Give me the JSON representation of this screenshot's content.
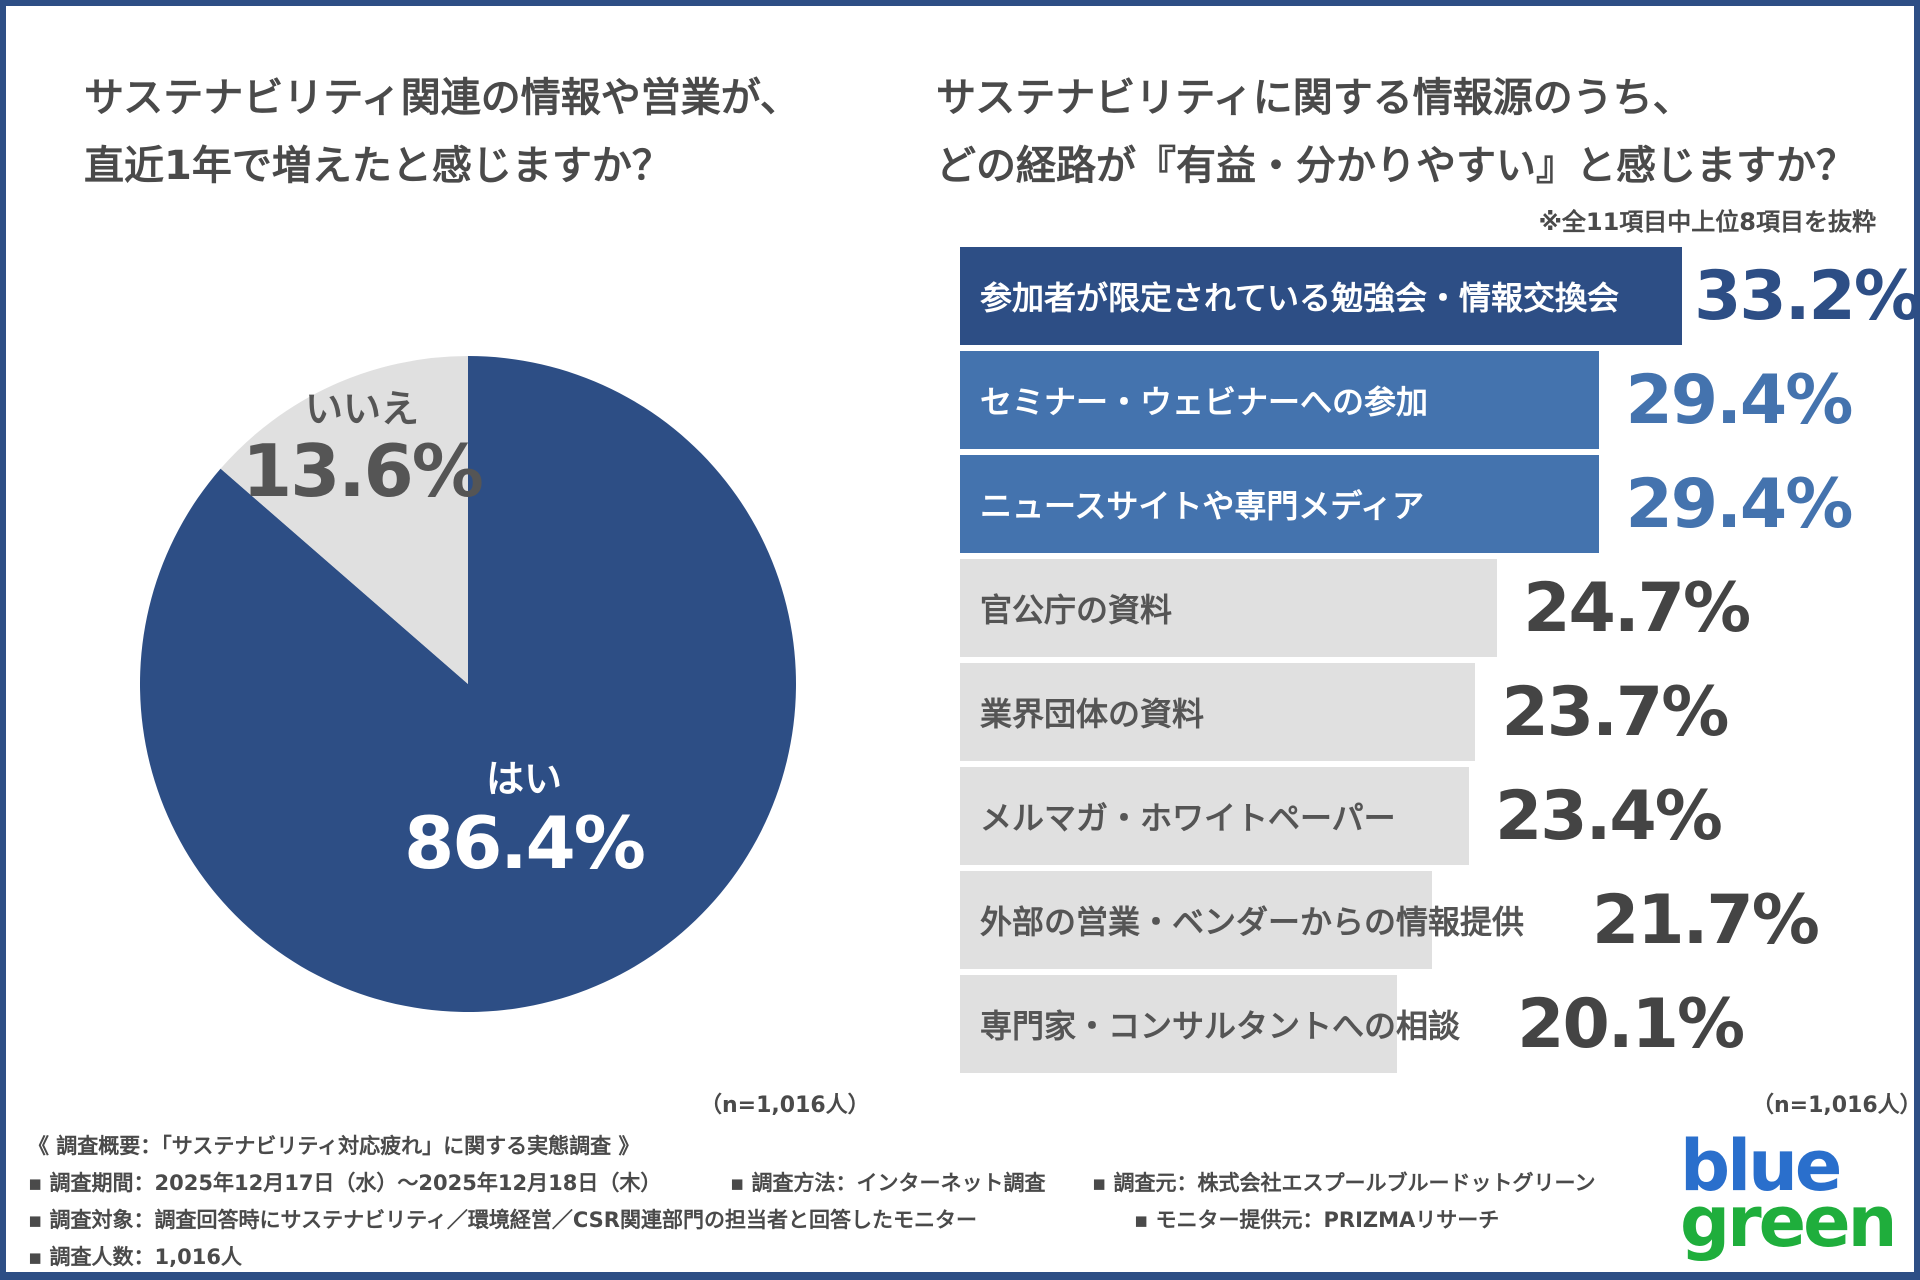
{
  "colors": {
    "navy": "#2d4e85",
    "mid_blue": "#4473ae",
    "grey_bar": "#e0e0e0",
    "text": "#444444",
    "logo_blue": "#2a6fcc",
    "logo_green": "#1fae3c"
  },
  "chart_data": [
    {
      "type": "pie",
      "title": "サステナビリティ関連の情報や営業が、\n直近1年で増えたと感じますか？",
      "slices": [
        {
          "label": "はい",
          "value": 86.4,
          "display": "86.4%",
          "color": "#2d4e85"
        },
        {
          "label": "いいえ",
          "value": 13.6,
          "display": "13.6%",
          "color": "#e0e0e0"
        }
      ],
      "sample": "（n=1,016人）"
    },
    {
      "type": "bar",
      "orientation": "horizontal",
      "title": "サステナビリティに関する情報源のうち、\nどの経路が『有益・分かりやすい』と感じますか？",
      "note": "※全11項目中上位8項目を抜粋",
      "categories": [
        "参加者が限定されている勉強会・情報交換会",
        "セミナー・ウェビナーへの参加",
        "ニュースサイトや専門メディア",
        "官公庁の資料",
        "業界団体の資料",
        "メルマガ・ホワイトペーパー",
        "外部の営業・ベンダーからの情報提供",
        "専門家・コンサルタントへの相談"
      ],
      "values": [
        33.2,
        29.4,
        29.4,
        24.7,
        23.7,
        23.4,
        21.7,
        20.1
      ],
      "labels": [
        "33.2%",
        "29.4%",
        "29.4%",
        "24.7%",
        "23.7%",
        "23.4%",
        "21.7%",
        "20.1%"
      ],
      "unit": "%",
      "sample": "（n=1,016人）"
    }
  ],
  "footer": {
    "heading": "《 調査概要：「サステナビリティ対応疲れ」に関する実態調査 》",
    "period": "▪ 調査期間：2025年12月17日（水）～2025年12月18日（木）",
    "method": "▪ 調査方法：インターネット調査",
    "source": "▪ 調査元：株式会社エスプールブルードットグリーン",
    "target": "▪ 調査対象：調査回答時にサステナビリティ／環境経営／CSR関連部門の担当者と回答したモニター",
    "provider": "▪ モニター提供元：PRIZMAリサーチ",
    "count": "▪ 調査人数：1,016人"
  },
  "logo": {
    "line1": "blue",
    "line2": "green"
  }
}
